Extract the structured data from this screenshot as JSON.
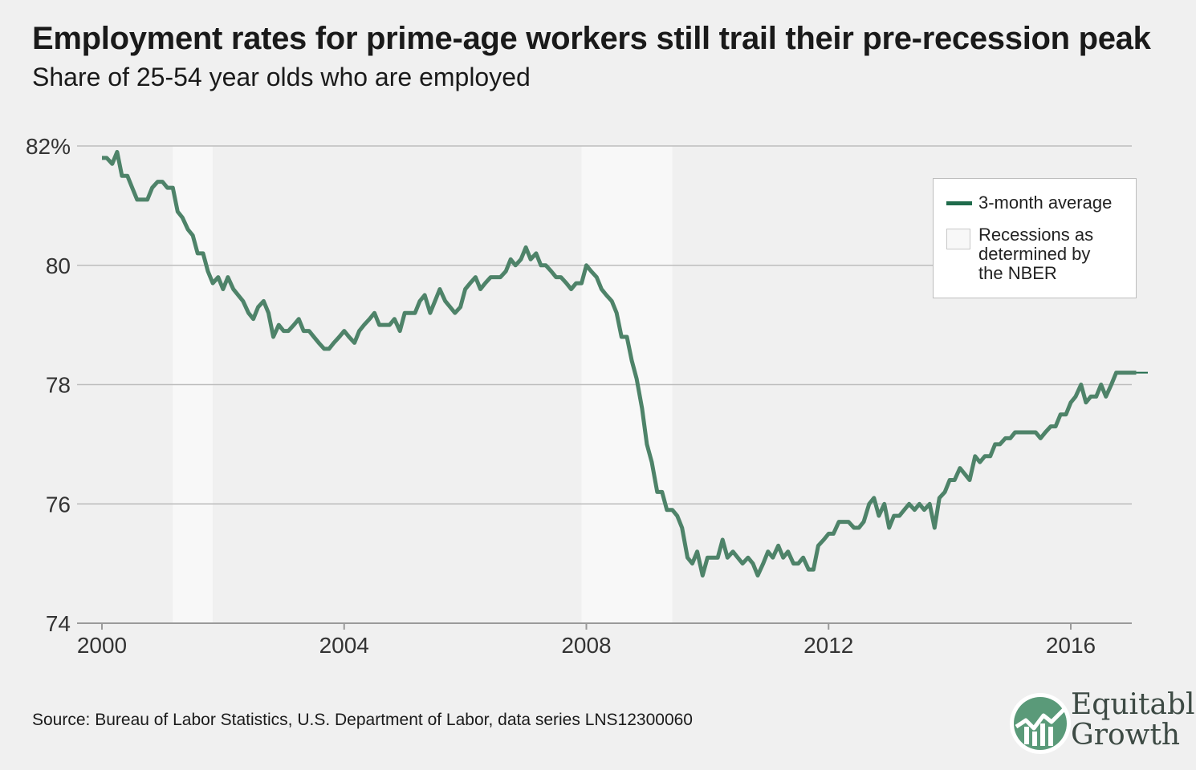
{
  "title": "Employment rates for prime-age workers still trail their pre-recession peak",
  "subtitle": "Share of 25-54 year olds who are employed",
  "legend": {
    "line_label": "3-month average",
    "recession_label_lines": [
      "Recessions as",
      "determined by",
      "the NBER"
    ]
  },
  "source": "Source: Bureau of Labor Statistics, U.S. Department of Labor, data series LNS12300060",
  "logo": {
    "text": "Equitable\nGrowth",
    "icon": "bar-chart-growth-icon"
  },
  "colors": {
    "line": "#4e8369",
    "legend_line": "#1f6b4b",
    "recession": "#f8f8f8",
    "grid": "#bdbdbd",
    "background": "#f0f0f0"
  },
  "chart_data": {
    "type": "line",
    "ylim": [
      74,
      82
    ],
    "xlim": [
      2000,
      2017.2
    ],
    "y_ticks": [
      {
        "value": 82,
        "label": "82%"
      },
      {
        "value": 80,
        "label": "80"
      },
      {
        "value": 78,
        "label": "78"
      },
      {
        "value": 76,
        "label": "76"
      },
      {
        "value": 74,
        "label": "74"
      }
    ],
    "x_ticks": [
      {
        "value": 2000,
        "label": "2000"
      },
      {
        "value": 2004,
        "label": "2004"
      },
      {
        "value": 2008,
        "label": "2008"
      },
      {
        "value": 2012,
        "label": "2012"
      },
      {
        "value": 2016,
        "label": "2016"
      }
    ],
    "recessions": [
      [
        2001.17,
        2001.83
      ],
      [
        2007.92,
        2009.42
      ]
    ],
    "grid": true,
    "legend_position": "top-right",
    "series": [
      {
        "name": "3-month average",
        "points": [
          [
            2000.0,
            81.8
          ],
          [
            2000.08,
            81.8
          ],
          [
            2000.17,
            81.7
          ],
          [
            2000.25,
            81.9
          ],
          [
            2000.33,
            81.5
          ],
          [
            2000.42,
            81.5
          ],
          [
            2000.5,
            81.3
          ],
          [
            2000.58,
            81.1
          ],
          [
            2000.67,
            81.1
          ],
          [
            2000.75,
            81.1
          ],
          [
            2000.83,
            81.3
          ],
          [
            2000.92,
            81.4
          ],
          [
            2001.0,
            81.4
          ],
          [
            2001.08,
            81.3
          ],
          [
            2001.17,
            81.3
          ],
          [
            2001.25,
            80.9
          ],
          [
            2001.33,
            80.8
          ],
          [
            2001.42,
            80.6
          ],
          [
            2001.5,
            80.5
          ],
          [
            2001.58,
            80.2
          ],
          [
            2001.67,
            80.2
          ],
          [
            2001.75,
            79.9
          ],
          [
            2001.83,
            79.7
          ],
          [
            2001.92,
            79.8
          ],
          [
            2002.0,
            79.6
          ],
          [
            2002.08,
            79.8
          ],
          [
            2002.17,
            79.6
          ],
          [
            2002.25,
            79.5
          ],
          [
            2002.33,
            79.4
          ],
          [
            2002.42,
            79.2
          ],
          [
            2002.5,
            79.1
          ],
          [
            2002.58,
            79.3
          ],
          [
            2002.67,
            79.4
          ],
          [
            2002.75,
            79.2
          ],
          [
            2002.83,
            78.8
          ],
          [
            2002.92,
            79.0
          ],
          [
            2003.0,
            78.9
          ],
          [
            2003.08,
            78.9
          ],
          [
            2003.17,
            79.0
          ],
          [
            2003.25,
            79.1
          ],
          [
            2003.33,
            78.9
          ],
          [
            2003.42,
            78.9
          ],
          [
            2003.5,
            78.8
          ],
          [
            2003.58,
            78.7
          ],
          [
            2003.67,
            78.6
          ],
          [
            2003.75,
            78.6
          ],
          [
            2003.83,
            78.7
          ],
          [
            2003.92,
            78.8
          ],
          [
            2004.0,
            78.9
          ],
          [
            2004.08,
            78.8
          ],
          [
            2004.17,
            78.7
          ],
          [
            2004.25,
            78.9
          ],
          [
            2004.33,
            79.0
          ],
          [
            2004.42,
            79.1
          ],
          [
            2004.5,
            79.2
          ],
          [
            2004.58,
            79.0
          ],
          [
            2004.67,
            79.0
          ],
          [
            2004.75,
            79.0
          ],
          [
            2004.83,
            79.1
          ],
          [
            2004.92,
            78.9
          ],
          [
            2005.0,
            79.2
          ],
          [
            2005.08,
            79.2
          ],
          [
            2005.17,
            79.2
          ],
          [
            2005.25,
            79.4
          ],
          [
            2005.33,
            79.5
          ],
          [
            2005.42,
            79.2
          ],
          [
            2005.5,
            79.4
          ],
          [
            2005.58,
            79.6
          ],
          [
            2005.67,
            79.4
          ],
          [
            2005.75,
            79.3
          ],
          [
            2005.83,
            79.2
          ],
          [
            2005.92,
            79.3
          ],
          [
            2006.0,
            79.6
          ],
          [
            2006.08,
            79.7
          ],
          [
            2006.17,
            79.8
          ],
          [
            2006.25,
            79.6
          ],
          [
            2006.33,
            79.7
          ],
          [
            2006.42,
            79.8
          ],
          [
            2006.5,
            79.8
          ],
          [
            2006.58,
            79.8
          ],
          [
            2006.67,
            79.9
          ],
          [
            2006.75,
            80.1
          ],
          [
            2006.83,
            80.0
          ],
          [
            2006.92,
            80.1
          ],
          [
            2007.0,
            80.3
          ],
          [
            2007.08,
            80.1
          ],
          [
            2007.17,
            80.2
          ],
          [
            2007.25,
            80.0
          ],
          [
            2007.33,
            80.0
          ],
          [
            2007.42,
            79.9
          ],
          [
            2007.5,
            79.8
          ],
          [
            2007.58,
            79.8
          ],
          [
            2007.67,
            79.7
          ],
          [
            2007.75,
            79.6
          ],
          [
            2007.83,
            79.7
          ],
          [
            2007.92,
            79.7
          ],
          [
            2008.0,
            80.0
          ],
          [
            2008.08,
            79.9
          ],
          [
            2008.17,
            79.8
          ],
          [
            2008.25,
            79.6
          ],
          [
            2008.33,
            79.5
          ],
          [
            2008.42,
            79.4
          ],
          [
            2008.5,
            79.2
          ],
          [
            2008.58,
            78.8
          ],
          [
            2008.67,
            78.8
          ],
          [
            2008.75,
            78.4
          ],
          [
            2008.83,
            78.1
          ],
          [
            2008.92,
            77.6
          ],
          [
            2009.0,
            77.0
          ],
          [
            2009.08,
            76.7
          ],
          [
            2009.17,
            76.2
          ],
          [
            2009.25,
            76.2
          ],
          [
            2009.33,
            75.9
          ],
          [
            2009.42,
            75.9
          ],
          [
            2009.5,
            75.8
          ],
          [
            2009.58,
            75.6
          ],
          [
            2009.67,
            75.1
          ],
          [
            2009.75,
            75.0
          ],
          [
            2009.83,
            75.2
          ],
          [
            2009.92,
            74.8
          ],
          [
            2010.0,
            75.1
          ],
          [
            2010.08,
            75.1
          ],
          [
            2010.17,
            75.1
          ],
          [
            2010.25,
            75.4
          ],
          [
            2010.33,
            75.1
          ],
          [
            2010.42,
            75.2
          ],
          [
            2010.5,
            75.1
          ],
          [
            2010.58,
            75.0
          ],
          [
            2010.67,
            75.1
          ],
          [
            2010.75,
            75.0
          ],
          [
            2010.83,
            74.8
          ],
          [
            2010.92,
            75.0
          ],
          [
            2011.0,
            75.2
          ],
          [
            2011.08,
            75.1
          ],
          [
            2011.17,
            75.3
          ],
          [
            2011.25,
            75.1
          ],
          [
            2011.33,
            75.2
          ],
          [
            2011.42,
            75.0
          ],
          [
            2011.5,
            75.0
          ],
          [
            2011.58,
            75.1
          ],
          [
            2011.67,
            74.9
          ],
          [
            2011.75,
            74.9
          ],
          [
            2011.83,
            75.3
          ],
          [
            2011.92,
            75.4
          ],
          [
            2012.0,
            75.5
          ],
          [
            2012.08,
            75.5
          ],
          [
            2012.17,
            75.7
          ],
          [
            2012.25,
            75.7
          ],
          [
            2012.33,
            75.7
          ],
          [
            2012.42,
            75.6
          ],
          [
            2012.5,
            75.6
          ],
          [
            2012.58,
            75.7
          ],
          [
            2012.67,
            76.0
          ],
          [
            2012.75,
            76.1
          ],
          [
            2012.83,
            75.8
          ],
          [
            2012.92,
            76.0
          ],
          [
            2013.0,
            75.6
          ],
          [
            2013.08,
            75.8
          ],
          [
            2013.17,
            75.8
          ],
          [
            2013.25,
            75.9
          ],
          [
            2013.33,
            76.0
          ],
          [
            2013.42,
            75.9
          ],
          [
            2013.5,
            76.0
          ],
          [
            2013.58,
            75.9
          ],
          [
            2013.67,
            76.0
          ],
          [
            2013.75,
            75.6
          ],
          [
            2013.83,
            76.1
          ],
          [
            2013.92,
            76.2
          ],
          [
            2014.0,
            76.4
          ],
          [
            2014.08,
            76.4
          ],
          [
            2014.17,
            76.6
          ],
          [
            2014.25,
            76.5
          ],
          [
            2014.33,
            76.4
          ],
          [
            2014.42,
            76.8
          ],
          [
            2014.5,
            76.7
          ],
          [
            2014.58,
            76.8
          ],
          [
            2014.67,
            76.8
          ],
          [
            2014.75,
            77.0
          ],
          [
            2014.83,
            77.0
          ],
          [
            2014.92,
            77.1
          ],
          [
            2015.0,
            77.1
          ],
          [
            2015.08,
            77.2
          ],
          [
            2015.17,
            77.2
          ],
          [
            2015.25,
            77.2
          ],
          [
            2015.33,
            77.2
          ],
          [
            2015.42,
            77.2
          ],
          [
            2015.5,
            77.1
          ],
          [
            2015.58,
            77.2
          ],
          [
            2015.67,
            77.3
          ],
          [
            2015.75,
            77.3
          ],
          [
            2015.83,
            77.5
          ],
          [
            2015.92,
            77.5
          ],
          [
            2016.0,
            77.7
          ],
          [
            2016.08,
            77.8
          ],
          [
            2016.17,
            78.0
          ],
          [
            2016.25,
            77.7
          ],
          [
            2016.33,
            77.8
          ],
          [
            2016.42,
            77.8
          ],
          [
            2016.5,
            78.0
          ],
          [
            2016.58,
            77.8
          ],
          [
            2016.67,
            78.0
          ],
          [
            2016.75,
            78.2
          ],
          [
            2016.83,
            78.2
          ],
          [
            2016.92,
            78.2
          ],
          [
            2017.0,
            78.2
          ],
          [
            2017.08,
            78.2
          ]
        ]
      }
    ]
  }
}
